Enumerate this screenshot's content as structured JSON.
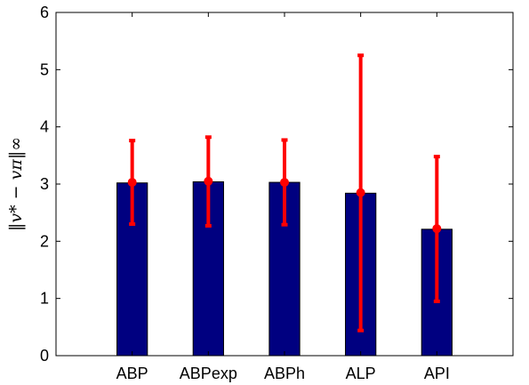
{
  "chart_data": {
    "type": "bar",
    "title": "",
    "xlabel": "",
    "ylabel": "‖v* − vπ‖∞",
    "categories": [
      "ABP",
      "ABPexp",
      "ABPh",
      "ALP",
      "API"
    ],
    "values": [
      3.02,
      3.04,
      3.03,
      2.84,
      2.21
    ],
    "error_bars": {
      "center": [
        3.03,
        3.05,
        3.03,
        2.85,
        2.22
      ],
      "lower": [
        2.3,
        2.27,
        2.29,
        0.44,
        0.95
      ],
      "upper": [
        3.76,
        3.82,
        3.77,
        5.25,
        3.48
      ]
    },
    "ylim": [
      0,
      6
    ],
    "yticks": [
      0,
      1,
      2,
      3,
      4,
      5,
      6
    ],
    "grid": false,
    "legend": "none",
    "colors": {
      "bar": "#000080",
      "bar_edge": "#000000",
      "error": "#ff0000",
      "axis": "#000000"
    }
  }
}
